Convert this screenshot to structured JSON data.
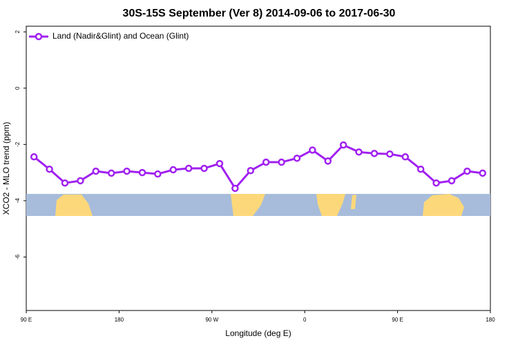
{
  "chart_data": {
    "type": "line",
    "title": "30S-15S September (Ver 8)   2014-09-06 to 2017-06-30",
    "x_label": "Longitude (deg E)",
    "y_label": "XCO2 - MLO trend (ppm)",
    "x": [
      97.5,
      112.5,
      127.5,
      142.5,
      157.5,
      172.5,
      187.5,
      202.5,
      217.5,
      232.5,
      247.5,
      262.5,
      277.5,
      292.5,
      307.5,
      322.5,
      337.5,
      352.5,
      367.5,
      382.5,
      397.5,
      412.5,
      427.5,
      442.5,
      457.5,
      472.5,
      487.5,
      502.5,
      517.5,
      532.5
    ],
    "series": [
      {
        "name": "Land (Nadir&Glint) and Ocean (Glint)",
        "color": "#a020f0",
        "values": [
          -2.44,
          -2.88,
          -3.37,
          -3.29,
          -2.95,
          -3.02,
          -2.95,
          -3.0,
          -3.05,
          -2.9,
          -2.85,
          -2.85,
          -2.68,
          -3.56,
          -2.93,
          -2.63,
          -2.63,
          -2.49,
          -2.2,
          -2.59,
          -2.02,
          -2.27,
          -2.32,
          -2.34,
          -2.44,
          -2.88,
          -3.37,
          -3.29,
          -2.95,
          -3.02
        ]
      }
    ],
    "xlim": [
      90,
      540
    ],
    "xticks": [
      {
        "value": 90,
        "label": "90 E"
      },
      180,
      {
        "value": 270,
        "label": "90 W"
      },
      {
        "value": 360,
        "label": "0"
      },
      {
        "value": 450,
        "label": "90 E"
      },
      {
        "value": 540,
        "label": "180"
      }
    ],
    "ylim": [
      -7.9,
      2.2
    ],
    "yticks": [
      2,
      0,
      -2,
      -4,
      -6
    ],
    "legend_position": "top-left"
  }
}
